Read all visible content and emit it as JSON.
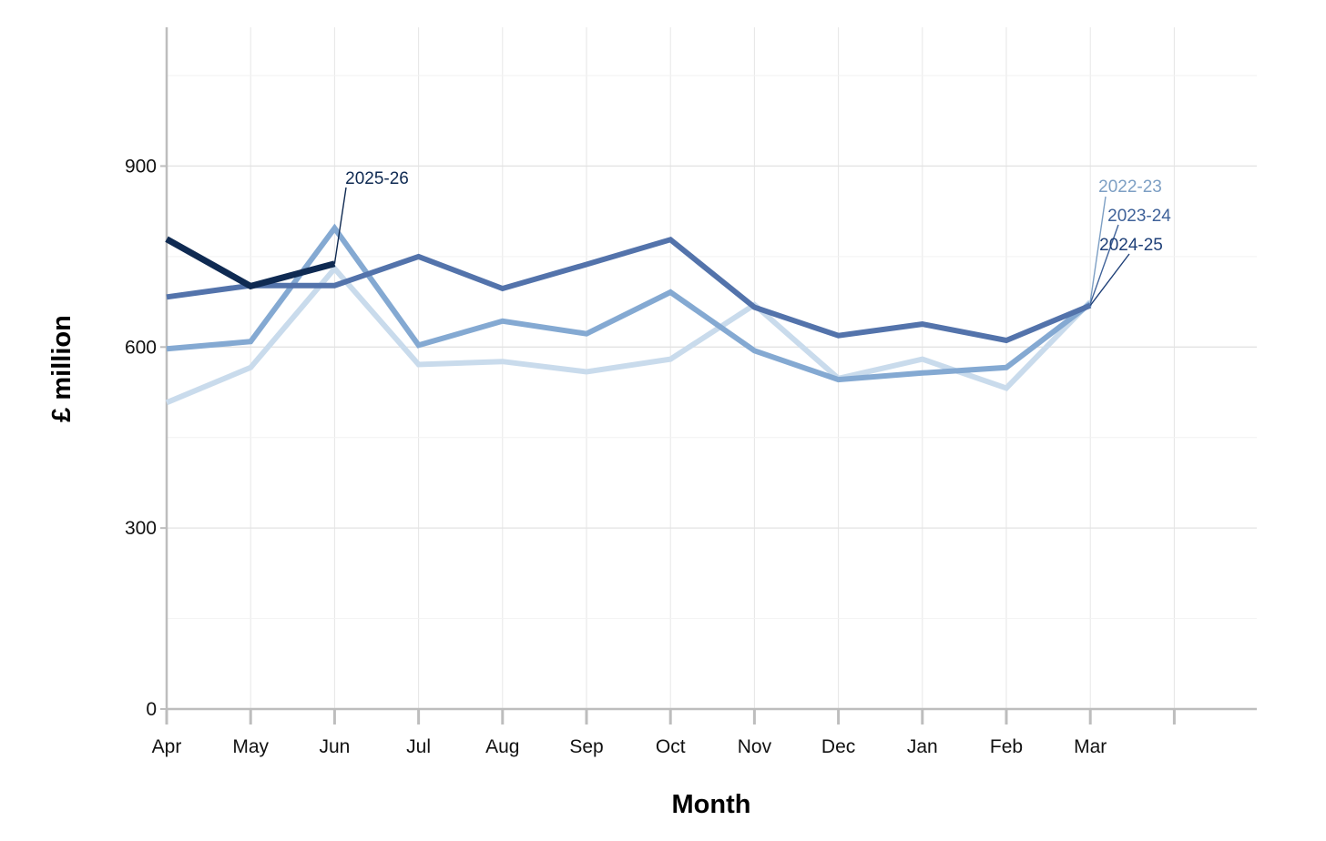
{
  "chart_data": {
    "type": "line",
    "xlabel": "Month",
    "ylabel": "£ million",
    "categories": [
      "Apr",
      "May",
      "Jun",
      "Jul",
      "Aug",
      "Sep",
      "Oct",
      "Nov",
      "Dec",
      "Jan",
      "Feb",
      "Mar"
    ],
    "yticks": [
      0,
      300,
      600,
      900
    ],
    "ylim": [
      0,
      1130
    ],
    "grid": true,
    "series": [
      {
        "name": "2022-23",
        "color": "#c9dbec",
        "values": [
          508,
          566,
          730,
          571,
          576,
          559,
          580,
          670,
          548,
          580,
          532,
          675
        ]
      },
      {
        "name": "2023-24",
        "color": "#84a9d2",
        "values": [
          597,
          609,
          797,
          603,
          643,
          622,
          691,
          594,
          546,
          557,
          566,
          672
        ]
      },
      {
        "name": "2024-25",
        "color": "#5373ab",
        "values": [
          683,
          702,
          702,
          750,
          697,
          737,
          778,
          666,
          619,
          638,
          611,
          669
        ]
      },
      {
        "name": "2025-26",
        "color": "#0f2a52",
        "values": [
          779,
          701,
          738,
          null,
          null,
          null,
          null,
          null,
          null,
          null,
          null,
          null
        ]
      }
    ]
  }
}
